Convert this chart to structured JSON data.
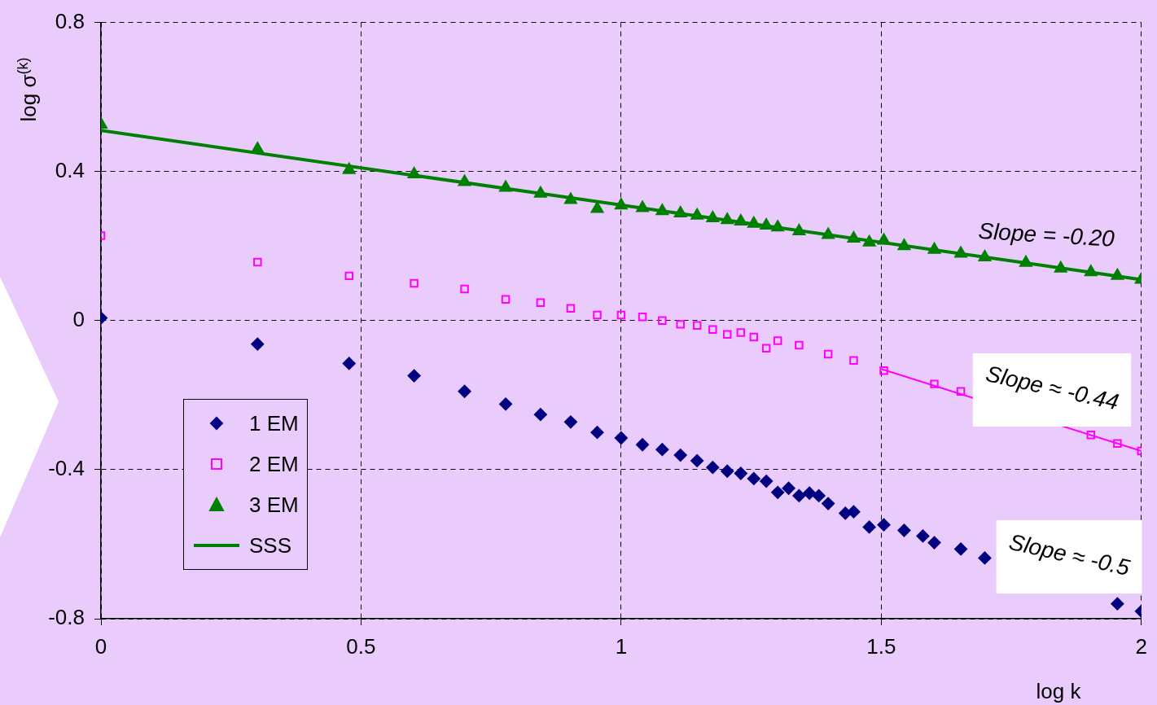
{
  "chart_data": {
    "type": "scatter",
    "xlabel": "log k",
    "ylabel": "log σ$^{(k)}$",
    "xlim": [
      0,
      2
    ],
    "ylim": [
      -0.8,
      0.8
    ],
    "xticks": [
      0,
      0.5,
      1,
      1.5,
      2
    ],
    "yticks": [
      -0.8,
      -0.4,
      0,
      0.4,
      0.8
    ],
    "grid": true,
    "legend": "bottom left",
    "series": [
      {
        "name": "1 EM",
        "color": "#000080",
        "marker": "diamond",
        "x": [
          0,
          0.301,
          0.477,
          0.602,
          0.699,
          0.778,
          0.845,
          0.903,
          0.954,
          1,
          1.041,
          1.079,
          1.114,
          1.146,
          1.176,
          1.204,
          1.23,
          1.255,
          1.279,
          1.301,
          1.322,
          1.342,
          1.362,
          1.38,
          1.398,
          1.431,
          1.447,
          1.477,
          1.505,
          1.544,
          1.58,
          1.602,
          1.653,
          1.699,
          1.778,
          1.845,
          1.903,
          1.954,
          2
        ],
        "values": [
          0.007,
          -0.063,
          -0.115,
          -0.148,
          -0.19,
          -0.224,
          -0.252,
          -0.272,
          -0.3,
          -0.315,
          -0.333,
          -0.346,
          -0.361,
          -0.376,
          -0.394,
          -0.404,
          -0.41,
          -0.424,
          -0.431,
          -0.461,
          -0.45,
          -0.47,
          -0.463,
          -0.47,
          -0.491,
          -0.517,
          -0.513,
          -0.554,
          -0.548,
          -0.563,
          -0.578,
          -0.596,
          -0.613,
          -0.637,
          null,
          null,
          null,
          -0.76,
          -0.78
        ]
      },
      {
        "name": "2 EM",
        "color": "#ff00ff",
        "marker": "square",
        "x": [
          0,
          0.301,
          0.477,
          0.602,
          0.699,
          0.778,
          0.845,
          0.903,
          0.954,
          1,
          1.041,
          1.079,
          1.114,
          1.146,
          1.176,
          1.204,
          1.23,
          1.255,
          1.279,
          1.301,
          1.342,
          1.398,
          1.447,
          1.505,
          1.602,
          1.653,
          1.699,
          1.778,
          1.845,
          1.903,
          1.954,
          2
        ],
        "values": [
          0.228,
          0.157,
          0.12,
          0.1,
          0.085,
          0.057,
          0.048,
          0.033,
          0.015,
          0.015,
          0.01,
          0.0,
          -0.01,
          -0.013,
          -0.024,
          -0.037,
          -0.032,
          -0.044,
          -0.074,
          -0.054,
          -0.066,
          -0.09,
          -0.107,
          -0.134,
          -0.17,
          -0.19,
          null,
          null,
          null,
          -0.307,
          -0.33,
          -0.35
        ]
      },
      {
        "name": "3 EM",
        "color": "#008000",
        "marker": "triangle",
        "x": [
          0,
          0.301,
          0.477,
          0.602,
          0.699,
          0.778,
          0.845,
          0.903,
          0.954,
          1,
          1.041,
          1.079,
          1.114,
          1.146,
          1.176,
          1.204,
          1.23,
          1.255,
          1.279,
          1.301,
          1.342,
          1.398,
          1.447,
          1.477,
          1.505,
          1.544,
          1.602,
          1.653,
          1.699,
          1.778,
          1.845,
          1.903,
          1.954,
          2
        ],
        "values": [
          0.526,
          0.46,
          0.404,
          0.393,
          0.372,
          0.357,
          0.341,
          0.324,
          0.3,
          0.309,
          0.302,
          0.294,
          0.288,
          0.282,
          0.275,
          0.27,
          0.266,
          0.26,
          0.255,
          0.25,
          0.24,
          0.23,
          0.22,
          0.21,
          0.215,
          0.2,
          0.19,
          0.18,
          0.17,
          0.155,
          0.14,
          0.13,
          0.12,
          0.11
        ]
      },
      {
        "name": "SSS",
        "type": "line",
        "color": "#008000",
        "marker": "none",
        "x": [
          0,
          2
        ],
        "values": [
          0.51,
          0.11
        ]
      },
      {
        "type": "line",
        "color": "#ff00ff",
        "marker": "none",
        "x": [
          1.5,
          2
        ],
        "values": [
          -0.13,
          -0.35
        ]
      }
    ],
    "annotations": [
      "Slope = -0.20",
      "Slope ≈ -0.44",
      "Slope ≈ -0.5"
    ]
  }
}
